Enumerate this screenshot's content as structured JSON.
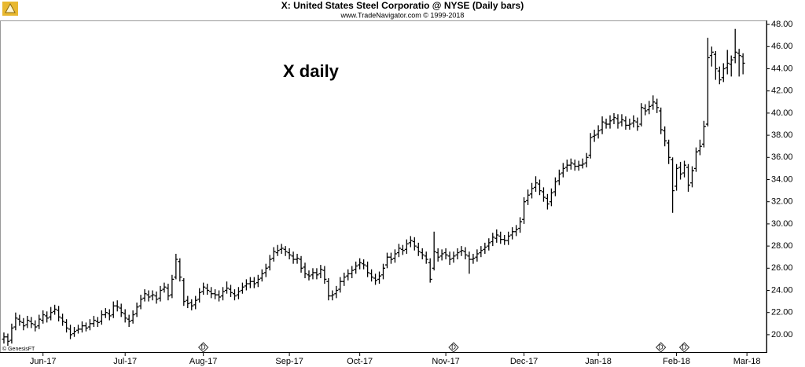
{
  "chart_data": {
    "type": "ohlc",
    "title": "X:  United States Steel Corporatio @ NYSE  (Daily bars)",
    "subtitle": "www.TradeNavigator.com © 1999-2018",
    "annotation": "X daily",
    "credit": "© GenesisFT",
    "color": "#000000",
    "open": [
      19.6,
      19.8,
      19.5,
      20.7,
      21.4,
      21.1,
      20.9,
      21.2,
      20.9,
      20.8,
      21.3,
      21.7,
      21.6,
      22.1,
      22.2,
      21.5,
      21.1,
      20.5,
      20.1,
      20.4,
      20.5,
      20.8,
      20.7,
      21.0,
      21.2,
      21.2,
      21.8,
      21.9,
      21.8,
      22.6,
      22.4,
      21.9,
      21.4,
      21.3,
      21.9,
      22.6,
      23.3,
      23.6,
      23.5,
      23.5,
      23.3,
      24.1,
      24.2,
      23.6,
      25.2,
      26.6,
      24.9,
      23.1,
      22.9,
      22.7,
      23.2,
      23.9,
      24.2,
      23.9,
      23.7,
      23.6,
      23.5,
      24.0,
      24.1,
      23.7,
      23.6,
      24.0,
      24.4,
      24.6,
      24.8,
      24.7,
      25.1,
      25.6,
      26.1,
      26.9,
      27.4,
      27.7,
      27.7,
      27.4,
      27.1,
      26.8,
      26.8,
      26.1,
      25.4,
      25.4,
      25.6,
      25.5,
      25.8,
      24.8,
      23.5,
      23.7,
      24.1,
      24.8,
      25.3,
      25.5,
      25.9,
      26.3,
      26.4,
      26.2,
      25.5,
      25.1,
      25.0,
      25.4,
      26.3,
      27.0,
      26.9,
      27.4,
      27.7,
      27.7,
      28.3,
      28.4,
      27.9,
      27.4,
      27.1,
      26.5,
      26.0,
      27.4,
      27.1,
      27.4,
      27.1,
      26.9,
      27.2,
      27.5,
      27.5,
      27.1,
      26.8,
      27.0,
      27.4,
      27.7,
      28.0,
      28.4,
      28.7,
      28.9,
      28.6,
      28.5,
      29.0,
      29.3,
      29.6,
      30.4,
      32.1,
      32.7,
      33.3,
      33.6,
      32.9,
      32.3,
      32.0,
      32.9,
      33.9,
      34.6,
      35.1,
      35.3,
      35.4,
      35.2,
      35.3,
      35.5,
      36.2,
      37.9,
      38.1,
      38.5,
      39.1,
      39.0,
      39.4,
      39.5,
      39.2,
      39.3,
      38.9,
      39.1,
      39.2,
      39.0,
      40.4,
      40.3,
      40.7,
      40.9,
      40.2,
      38.4,
      37.3,
      35.8,
      33.4,
      35.1,
      34.6,
      35.1,
      33.7,
      35.0,
      36.6,
      37.2,
      39.0,
      45.2,
      45.3,
      43.8,
      43.2,
      44.1,
      44.4,
      45.0,
      45.4,
      45.1
    ],
    "high": [
      20.2,
      20.1,
      21.0,
      22.0,
      21.8,
      21.5,
      21.7,
      21.6,
      21.3,
      21.8,
      22.2,
      22.1,
      22.5,
      22.7,
      22.6,
      21.9,
      21.4,
      20.9,
      20.7,
      20.9,
      21.2,
      21.1,
      21.4,
      21.7,
      21.6,
      22.2,
      22.4,
      22.3,
      23.0,
      23.1,
      22.8,
      22.3,
      21.8,
      22.2,
      22.9,
      23.6,
      24.1,
      24.0,
      24.0,
      23.9,
      24.4,
      24.7,
      24.6,
      25.4,
      27.3,
      26.9,
      25.1,
      23.5,
      23.2,
      23.5,
      24.2,
      24.7,
      24.6,
      24.3,
      24.1,
      24.0,
      24.3,
      24.8,
      24.5,
      24.1,
      24.3,
      24.7,
      25.0,
      25.2,
      25.2,
      25.4,
      25.9,
      26.4,
      27.2,
      27.9,
      28.1,
      28.2,
      28.0,
      27.8,
      27.5,
      27.3,
      27.1,
      26.5,
      25.8,
      26.0,
      26.0,
      26.3,
      26.2,
      25.1,
      24.0,
      24.4,
      25.2,
      25.6,
      25.9,
      26.2,
      26.6,
      26.9,
      26.8,
      26.6,
      25.9,
      25.5,
      25.7,
      26.4,
      27.4,
      27.4,
      27.7,
      28.2,
      28.1,
      28.6,
      28.9,
      28.8,
      28.3,
      27.8,
      27.5,
      26.9,
      29.3,
      27.8,
      27.7,
      27.8,
      27.5,
      27.5,
      27.8,
      28.0,
      27.9,
      27.5,
      27.3,
      27.7,
      28.0,
      28.3,
      28.7,
      29.2,
      29.5,
      29.3,
      29.0,
      29.3,
      29.7,
      29.9,
      30.6,
      32.4,
      33.1,
      33.7,
      34.3,
      34.0,
      33.3,
      32.7,
      33.2,
      34.2,
      34.9,
      35.5,
      35.8,
      35.9,
      35.8,
      35.7,
      35.9,
      36.4,
      38.2,
      38.5,
      38.9,
      39.7,
      39.5,
      39.8,
      40.0,
      39.9,
      39.9,
      39.7,
      39.5,
      39.8,
      39.6,
      40.9,
      40.8,
      41.1,
      41.6,
      41.3,
      40.5,
      38.8,
      37.6,
      36.0,
      35.4,
      35.6,
      35.7,
      35.4,
      35.2,
      36.9,
      37.6,
      39.3,
      46.8,
      46.0,
      45.6,
      44.2,
      44.5,
      45.7,
      45.2,
      47.6,
      45.8,
      45.4
    ],
    "low": [
      19.2,
      19.0,
      19.2,
      20.4,
      20.8,
      20.4,
      20.6,
      20.6,
      20.3,
      20.5,
      21.0,
      21.1,
      21.3,
      21.8,
      21.2,
      20.8,
      20.2,
      19.6,
      19.8,
      20.1,
      20.2,
      20.3,
      20.4,
      20.7,
      20.7,
      20.9,
      21.5,
      21.3,
      21.5,
      22.1,
      21.6,
      21.1,
      20.7,
      21.0,
      21.6,
      22.3,
      23.0,
      23.0,
      23.1,
      22.8,
      23.0,
      23.8,
      23.1,
      23.3,
      25.0,
      24.8,
      22.6,
      22.4,
      22.2,
      22.3,
      22.9,
      23.6,
      23.6,
      23.3,
      23.2,
      23.0,
      23.1,
      23.7,
      23.4,
      23.1,
      23.2,
      23.7,
      24.0,
      24.2,
      24.2,
      24.3,
      24.8,
      25.2,
      25.8,
      26.6,
      27.1,
      27.3,
      27.1,
      26.8,
      26.4,
      26.4,
      25.6,
      25.1,
      24.9,
      25.0,
      25.0,
      25.1,
      24.6,
      23.1,
      23.1,
      23.3,
      23.8,
      24.4,
      24.9,
      25.1,
      25.5,
      25.9,
      25.9,
      25.2,
      24.8,
      24.5,
      24.6,
      25.0,
      26.0,
      26.4,
      26.5,
      27.0,
      27.2,
      27.3,
      27.9,
      27.6,
      27.1,
      26.8,
      26.4,
      24.7,
      25.8,
      26.6,
      26.7,
      26.8,
      26.3,
      26.5,
      26.8,
      27.1,
      26.8,
      25.5,
      26.4,
      26.6,
      27.0,
      27.3,
      27.6,
      28.0,
      28.3,
      28.2,
      28.1,
      28.1,
      28.6,
      28.9,
      29.2,
      30.0,
      31.7,
      32.3,
      32.9,
      32.6,
      32.0,
      31.3,
      31.6,
      32.5,
      33.5,
      34.2,
      34.7,
      34.9,
      34.8,
      34.8,
      35.0,
      35.1,
      35.9,
      37.4,
      37.7,
      38.1,
      38.6,
      38.6,
      39.0,
      38.6,
      38.8,
      38.5,
      38.5,
      38.7,
      38.4,
      38.8,
      39.8,
      39.9,
      40.3,
      40.0,
      38.1,
      37.0,
      35.4,
      31.0,
      33.0,
      34.0,
      34.2,
      32.9,
      33.3,
      34.7,
      36.2,
      36.9,
      38.8,
      44.2,
      43.0,
      42.6,
      42.8,
      43.5,
      43.3,
      44.5,
      43.3,
      43.5
    ],
    "close": [
      19.8,
      19.4,
      20.6,
      21.5,
      21.2,
      20.8,
      21.3,
      21.0,
      20.7,
      21.4,
      21.8,
      21.5,
      22.0,
      22.3,
      21.6,
      21.2,
      20.6,
      20.0,
      20.3,
      20.5,
      20.8,
      20.6,
      21.0,
      21.3,
      21.1,
      21.8,
      22.0,
      21.7,
      22.6,
      22.5,
      22.0,
      21.5,
      21.2,
      21.8,
      22.5,
      23.2,
      23.7,
      23.4,
      23.6,
      23.2,
      24.0,
      24.3,
      23.5,
      25.0,
      26.8,
      25.2,
      23.0,
      22.8,
      22.6,
      23.1,
      23.8,
      24.3,
      24.0,
      23.7,
      23.6,
      23.4,
      23.9,
      24.2,
      23.8,
      23.5,
      23.9,
      24.3,
      24.6,
      24.8,
      24.6,
      25.0,
      25.5,
      26.0,
      26.8,
      27.5,
      27.6,
      27.8,
      27.5,
      27.2,
      26.8,
      26.9,
      26.0,
      25.5,
      25.3,
      25.6,
      25.4,
      25.9,
      25.0,
      23.5,
      23.6,
      24.0,
      24.8,
      25.2,
      25.5,
      25.8,
      26.2,
      26.5,
      26.3,
      25.6,
      25.2,
      24.9,
      25.3,
      26.0,
      27.0,
      26.8,
      27.3,
      27.8,
      27.6,
      28.2,
      28.5,
      28.0,
      27.5,
      27.2,
      26.8,
      25.0,
      27.5,
      27.0,
      27.3,
      27.2,
      26.8,
      27.1,
      27.4,
      27.6,
      27.2,
      26.8,
      26.9,
      27.3,
      27.6,
      27.9,
      28.3,
      28.8,
      29.0,
      28.6,
      28.5,
      28.9,
      29.3,
      29.5,
      30.2,
      32.0,
      32.6,
      33.2,
      33.7,
      33.0,
      32.4,
      31.8,
      32.8,
      33.8,
      34.5,
      35.0,
      35.3,
      35.5,
      35.2,
      35.3,
      35.4,
      36.0,
      37.8,
      38.0,
      38.4,
      39.2,
      39.0,
      39.3,
      39.6,
      39.1,
      39.4,
      38.9,
      39.0,
      39.3,
      38.8,
      40.5,
      40.2,
      40.6,
      41.0,
      40.5,
      38.5,
      37.5,
      36.0,
      33.0,
      35.0,
      34.5,
      35.3,
      33.5,
      34.8,
      36.5,
      37.0,
      38.8,
      45.0,
      45.5,
      44.0,
      43.0,
      44.0,
      44.5,
      44.8,
      45.5,
      45.2,
      44.5
    ],
    "xlim": [
      -1,
      195
    ],
    "xticks": [
      {
        "value": 10,
        "label": "Jun-17"
      },
      {
        "value": 31,
        "label": "Jul-17"
      },
      {
        "value": 51,
        "label": "Aug-17"
      },
      {
        "value": 73,
        "label": "Sep-17"
      },
      {
        "value": 91,
        "label": "Oct-17"
      },
      {
        "value": 113,
        "label": "Nov-17"
      },
      {
        "value": 133,
        "label": "Dec-17"
      },
      {
        "value": 152,
        "label": "Jan-18"
      },
      {
        "value": 172,
        "label": "Feb-18"
      },
      {
        "value": 190,
        "label": "Mar-18"
      }
    ],
    "ylim": [
      19,
      49
    ],
    "yticks": [
      {
        "value": 20,
        "label": "20.00"
      },
      {
        "value": 22,
        "label": "22.00"
      },
      {
        "value": 24,
        "label": "24.00"
      },
      {
        "value": 26,
        "label": "26.00"
      },
      {
        "value": 28,
        "label": "28.00"
      },
      {
        "value": 30,
        "label": "30.00"
      },
      {
        "value": 32,
        "label": "32.00"
      },
      {
        "value": 34,
        "label": "34.00"
      },
      {
        "value": 36,
        "label": "36.00"
      },
      {
        "value": 38,
        "label": "38.00"
      },
      {
        "value": 40,
        "label": "40.00"
      },
      {
        "value": 42,
        "label": "42.00"
      },
      {
        "value": 44,
        "label": "44.00"
      },
      {
        "value": 46,
        "label": "46.00"
      },
      {
        "value": 48,
        "label": "48.00"
      }
    ],
    "event_label": "D",
    "event_x": [
      51,
      115,
      168,
      174
    ],
    "grid": false
  }
}
